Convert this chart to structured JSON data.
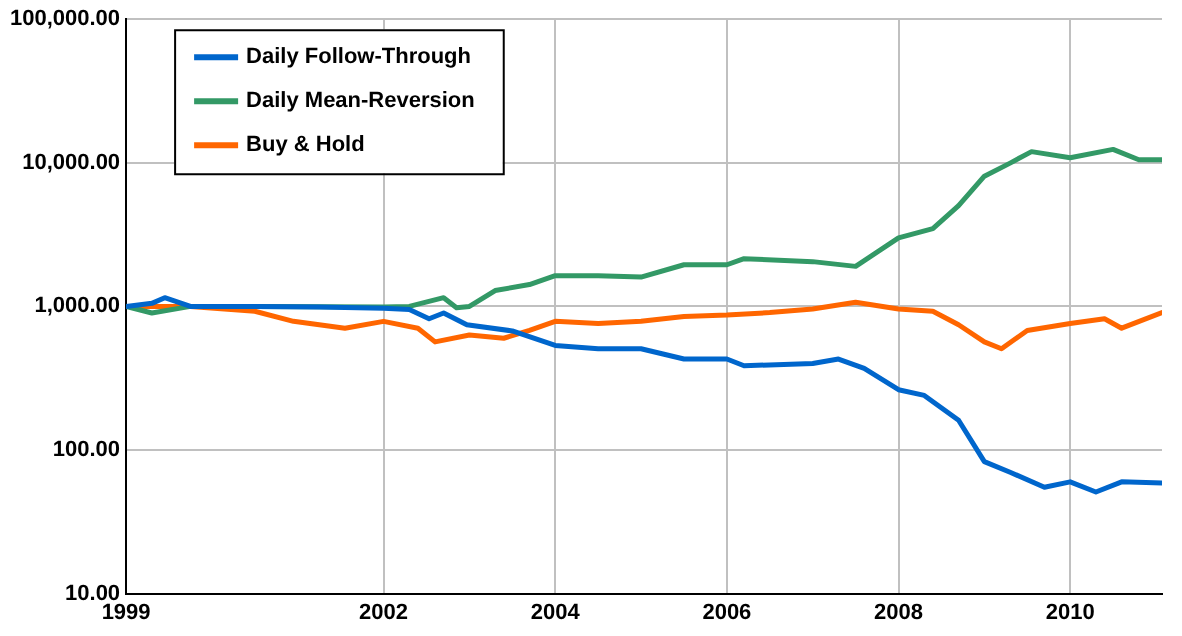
{
  "chart_data": {
    "type": "line",
    "x": [
      1999,
      1999.3,
      1999.45,
      1999.75,
      2000.5,
      2001.25,
      2002,
      2002.3,
      2002.53,
      2002.7,
      2002.97,
      2003.5,
      2004,
      2004.5,
      2005,
      2005.5,
      2006,
      2006.2,
      2007,
      2007.3,
      2007.6,
      2008,
      2008.3,
      2008.7,
      2009,
      2009.3,
      2009.7,
      2010,
      2010.3,
      2010.6,
      2011.07
    ],
    "series": [
      {
        "name": "Daily Follow-Through",
        "color": "#0066cc",
        "values": [
          1000,
          1050,
          1150,
          1000,
          1000,
          990,
          970,
          950,
          820,
          900,
          744,
          675,
          535,
          507,
          507,
          430,
          430,
          386,
          400,
          430,
          370,
          263,
          240,
          161,
          83,
          70,
          55,
          60,
          51,
          60,
          59
        ]
      },
      {
        "name": "Daily Mean-Reversion",
        "color": "#339966",
        "x": [
          1999,
          1999.3,
          1999.75,
          2000.5,
          2002,
          2002.3,
          2002.7,
          2002.85,
          2003,
          2003.3,
          2003.7,
          2004,
          2004.5,
          2005,
          2005.5,
          2006,
          2006.2,
          2007,
          2007.5,
          2008,
          2008.4,
          2008.7,
          2009,
          2009.3,
          2009.55,
          2010,
          2010.5,
          2010.8,
          2011.07
        ],
        "values": [
          1000,
          900,
          1000,
          1000,
          990,
          1000,
          1150,
          980,
          1000,
          1290,
          1420,
          1636,
          1636,
          1600,
          1950,
          1950,
          2150,
          2050,
          1900,
          3000,
          3480,
          5040,
          8070,
          9950,
          11960,
          10830,
          12400,
          10500,
          10500
        ]
      },
      {
        "name": "Buy & Hold",
        "color": "#ff6600",
        "x": [
          1999,
          1999.75,
          2000.5,
          2000.95,
          2001.55,
          2002,
          2002.4,
          2002.6,
          2003,
          2003.4,
          2003.7,
          2004,
          2004.5,
          2005,
          2005.5,
          2006,
          2006.5,
          2007,
          2007.5,
          2008,
          2008.4,
          2008.7,
          2009,
          2009.2,
          2009.5,
          2010,
          2010.4,
          2010.6,
          2011.07
        ],
        "values": [
          1000,
          1000,
          925,
          787,
          705,
          787,
          705,
          566,
          632,
          600,
          680,
          787,
          760,
          787,
          850,
          870,
          906,
          960,
          1070,
          960,
          925,
          745,
          566,
          507,
          680,
          760,
          820,
          705,
          906
        ]
      }
    ],
    "log": "y",
    "xlim": [
      1999,
      2011.07
    ],
    "xticks": [
      1999,
      2002,
      2004,
      2006,
      2008,
      2010
    ],
    "ylim": [
      10,
      100000
    ],
    "yticks": [
      {
        "value": 10,
        "label": "10.00"
      },
      {
        "value": 100,
        "label": "100.00"
      },
      {
        "value": 1000,
        "label": "1,000.00"
      },
      {
        "value": 10000,
        "label": "10,000.00"
      },
      {
        "value": 100000,
        "label": "100,000.00"
      }
    ],
    "grid": true,
    "legend": "top left",
    "marker": "none",
    "line_style": "solid"
  }
}
